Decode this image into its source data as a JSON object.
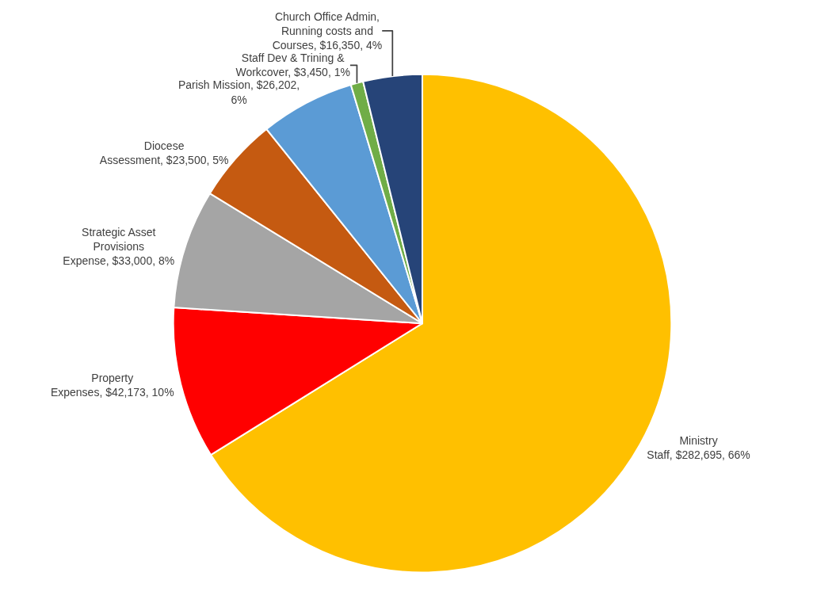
{
  "chart_data": {
    "type": "pie",
    "categories": [
      "Ministry Staff",
      "Property Expenses",
      "Strategic Asset Provisions Expense",
      "Diocese Assessment",
      "Parish Mission",
      "Staff Dev & Trining & Workcover",
      "Church Office Admin, Running costs and Courses"
    ],
    "values": [
      282695,
      42173,
      33000,
      23500,
      26202,
      3450,
      16350
    ],
    "value_labels": [
      "$282,695, 66%",
      "$42,173, 10%",
      "$33,000, 8%",
      "$23,500, 5%",
      "$26,202, 6%",
      "$3,450, 1%",
      "$16,350, 4%"
    ],
    "colors": [
      "#ffc000",
      "#ff0000",
      "#a5a5a5",
      "#c55a11",
      "#5b9bd5",
      "#70ad47",
      "#264478"
    ],
    "legend": false
  }
}
